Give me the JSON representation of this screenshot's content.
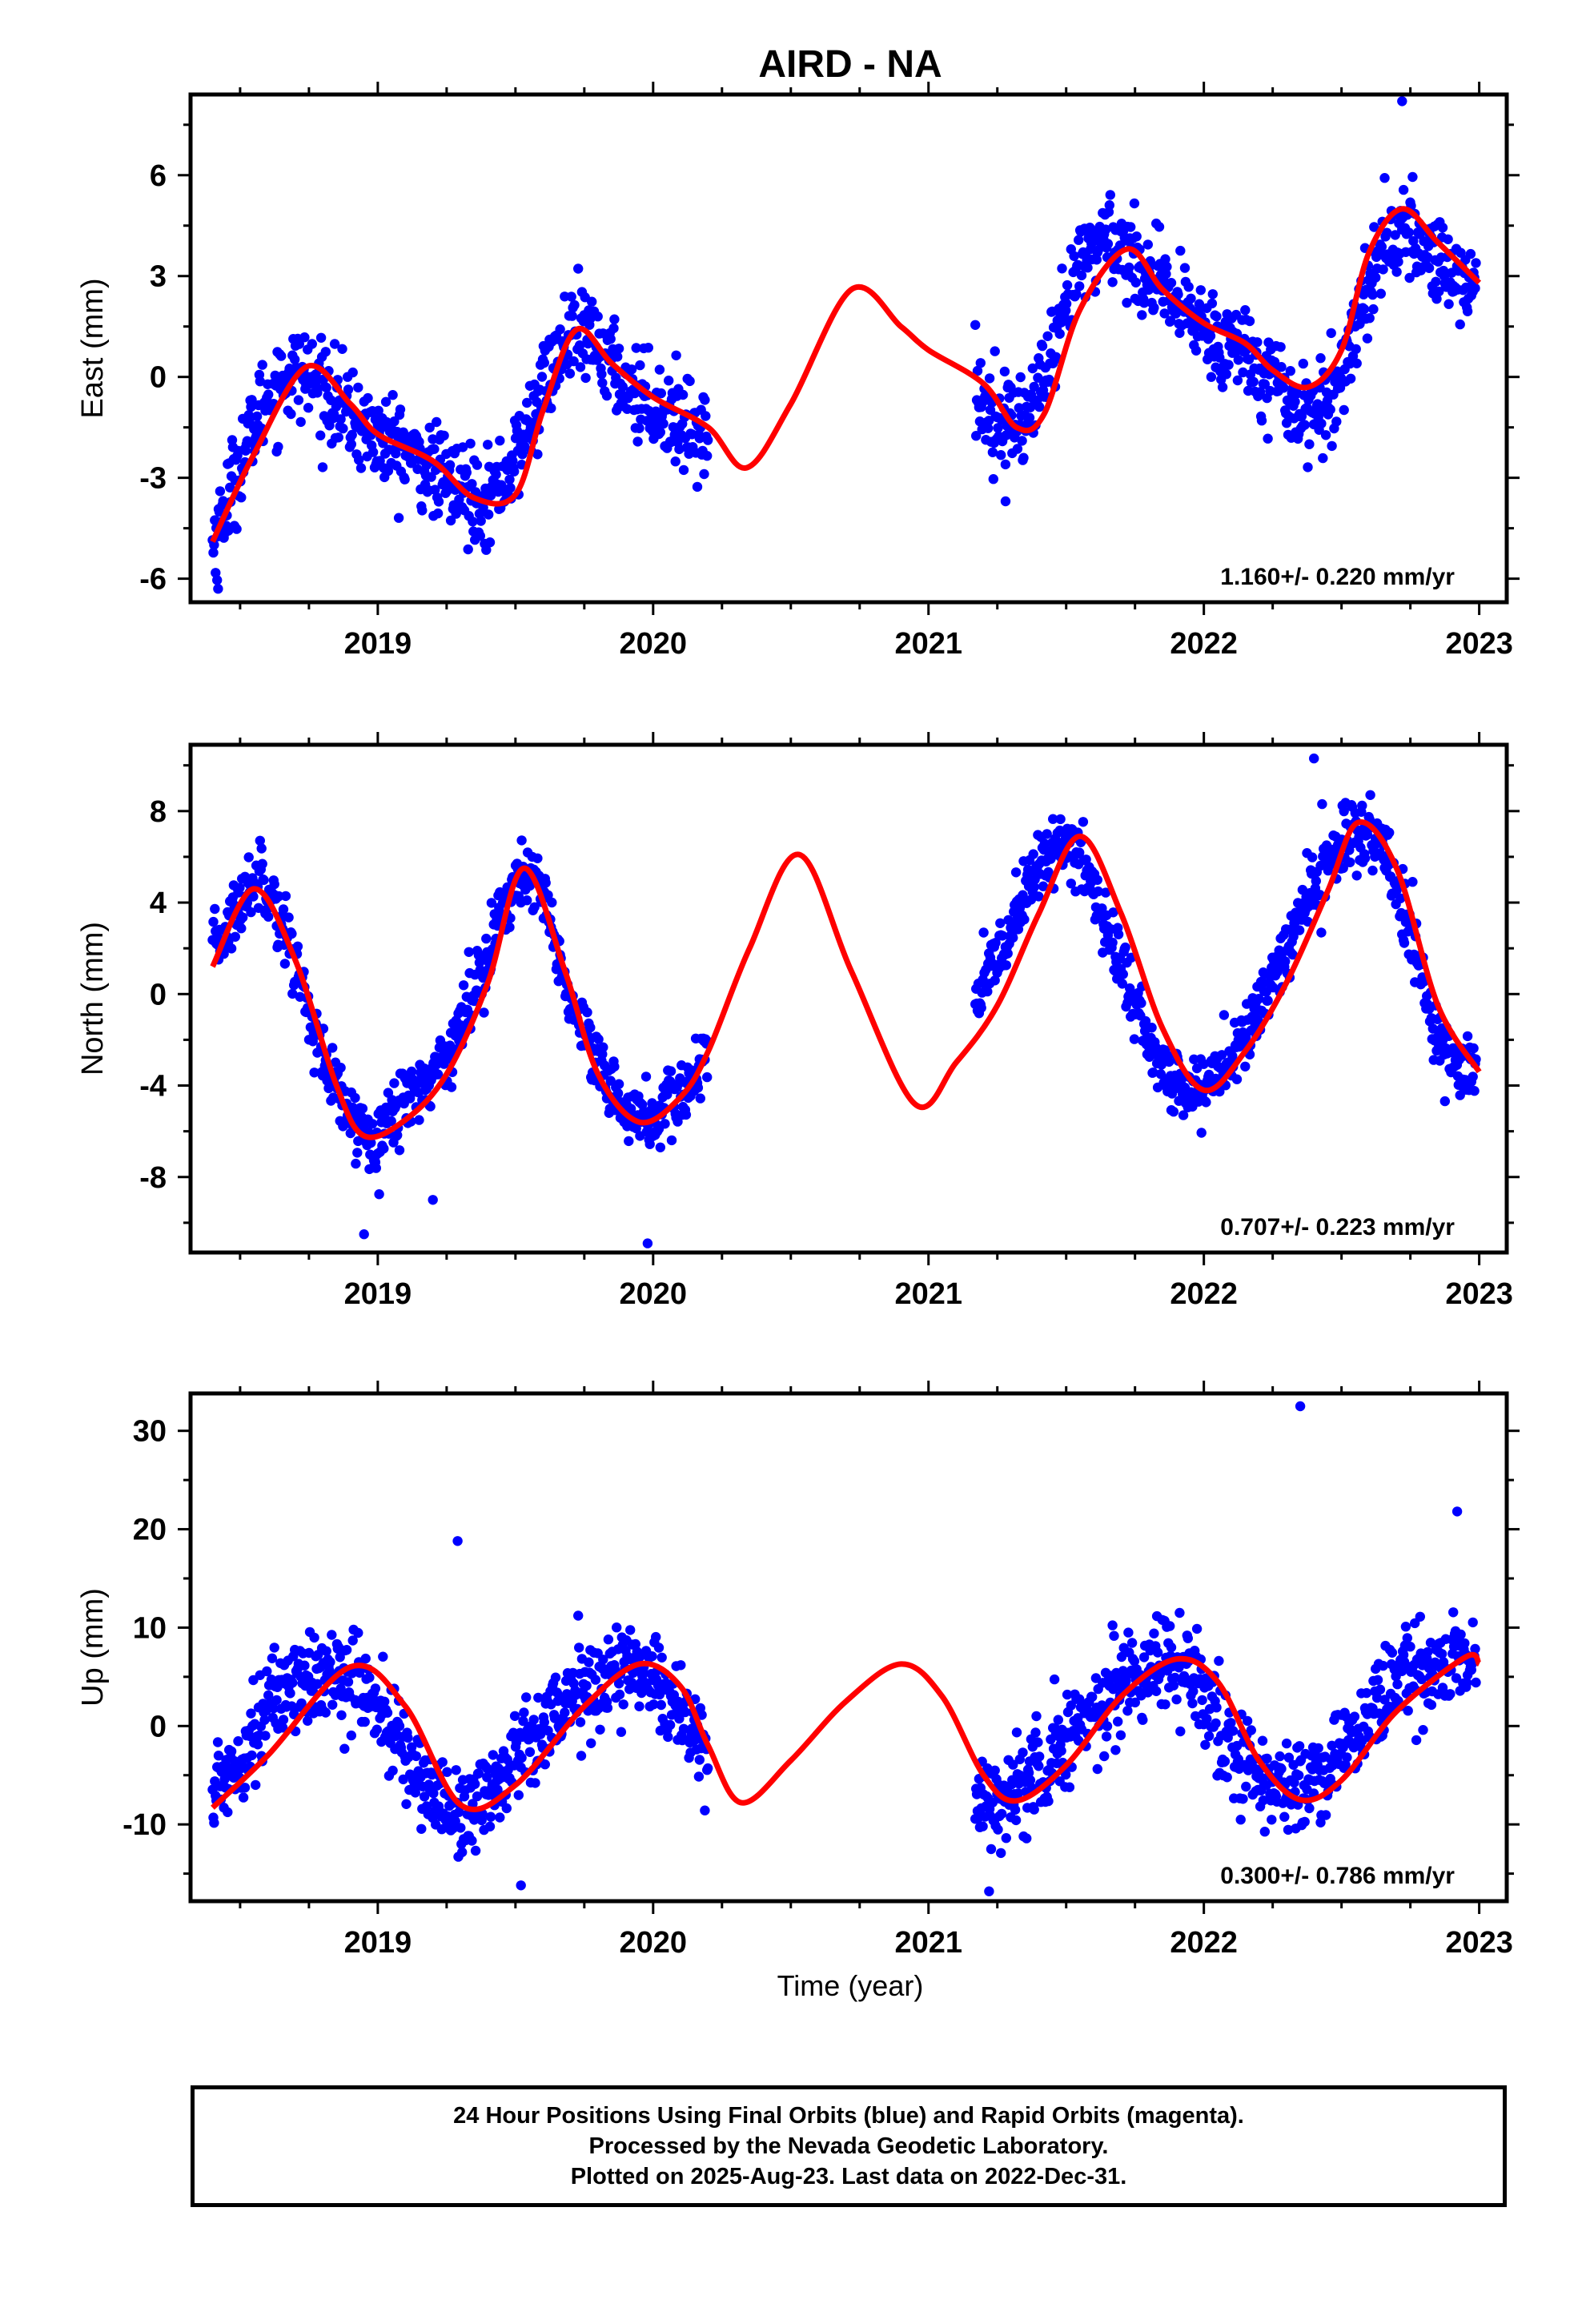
{
  "chart_data": [
    {
      "type": "scatter",
      "title": "AIRD - NA",
      "ylabel": "East (mm)",
      "xlabel": "",
      "xlim": [
        2018.32,
        2023.1
      ],
      "ylim": [
        -6.7,
        8.4
      ],
      "xticks": [
        2019,
        2020,
        2021,
        2022,
        2023
      ],
      "yticks": [
        -6,
        -3,
        0,
        3,
        6
      ],
      "annotation": "1.160+/- 0.220 mm/yr",
      "grid": false,
      "series": [
        {
          "kind": "points",
          "color": "#0000ff",
          "segments": [
            [
              2018.4,
              2020.2
            ],
            [
              2021.17,
              2022.99
            ]
          ],
          "x": [
            2018.4,
            2018.5,
            2018.6,
            2018.7,
            2018.8,
            2018.9,
            2019.0,
            2019.1,
            2019.2,
            2019.3,
            2019.4,
            2019.5,
            2019.6,
            2019.7,
            2019.8,
            2019.9,
            2020.0,
            2020.1,
            2020.2,
            2021.17,
            2021.25,
            2021.35,
            2021.45,
            2021.55,
            2021.65,
            2021.75,
            2021.85,
            2021.95,
            2022.05,
            2022.15,
            2022.25,
            2022.35,
            2022.45,
            2022.55,
            2022.65,
            2022.75,
            2022.85,
            2022.99
          ],
          "y": [
            -5.0,
            -2.5,
            -0.5,
            0.2,
            -0.3,
            -1.2,
            -1.8,
            -2.2,
            -2.8,
            -3.3,
            -3.6,
            -2.5,
            -0.3,
            1.3,
            0.9,
            -0.2,
            -0.8,
            -1.3,
            -1.8,
            -0.5,
            -1.2,
            -1.3,
            0.5,
            3.3,
            4.3,
            3.5,
            2.5,
            1.8,
            1.2,
            0.8,
            0.0,
            -1.0,
            -1.0,
            1.5,
            4.0,
            4.2,
            3.5,
            2.6
          ],
          "spread": 1.1,
          "outliers": [
            [
              2022.72,
              8.2
            ],
            [
              2018.42,
              -6.3
            ],
            [
              2021.28,
              -3.7
            ]
          ]
        },
        {
          "kind": "line",
          "color": "#ff0000",
          "x": [
            2018.4,
            2018.55,
            2018.74,
            2018.9,
            2019.0,
            2019.2,
            2019.35,
            2019.5,
            2019.6,
            2019.72,
            2019.85,
            2020.0,
            2020.2,
            2020.34,
            2020.5,
            2020.72,
            2020.9,
            2021.0,
            2021.2,
            2021.32,
            2021.42,
            2021.55,
            2021.72,
            2021.85,
            2022.0,
            2022.15,
            2022.25,
            2022.38,
            2022.5,
            2022.6,
            2022.72,
            2022.85,
            2023.0
          ],
          "y": [
            -4.9,
            -2.3,
            0.3,
            -0.8,
            -1.7,
            -2.5,
            -3.6,
            -3.5,
            -1.0,
            1.4,
            0.4,
            -0.6,
            -1.5,
            -2.7,
            -0.8,
            2.6,
            1.5,
            0.8,
            -0.2,
            -1.5,
            -1.1,
            2.0,
            3.8,
            2.6,
            1.6,
            1.0,
            0.2,
            -0.3,
            0.8,
            3.7,
            5.0,
            4.0,
            2.8
          ]
        }
      ]
    },
    {
      "type": "scatter",
      "title": "",
      "ylabel": "North (mm)",
      "xlabel": "",
      "xlim": [
        2018.32,
        2023.1
      ],
      "ylim": [
        -11.3,
        10.9
      ],
      "xticks": [
        2019,
        2020,
        2021,
        2022,
        2023
      ],
      "yticks": [
        -8,
        -4,
        0,
        4,
        8
      ],
      "annotation": "0.707+/- 0.223 mm/yr",
      "grid": false,
      "series": [
        {
          "kind": "points",
          "color": "#0000ff",
          "segments": [
            [
              2018.4,
              2020.2
            ],
            [
              2021.17,
              2022.99
            ]
          ],
          "x": [
            2018.4,
            2018.5,
            2018.58,
            2018.7,
            2018.8,
            2018.9,
            2019.0,
            2019.1,
            2019.2,
            2019.3,
            2019.4,
            2019.5,
            2019.6,
            2019.7,
            2019.8,
            2019.9,
            2020.0,
            2020.1,
            2020.2,
            2021.17,
            2021.25,
            2021.35,
            2021.45,
            2021.55,
            2021.65,
            2021.75,
            2021.85,
            2021.95,
            2022.05,
            2022.15,
            2022.25,
            2022.35,
            2022.45,
            2022.55,
            2022.65,
            2022.75,
            2022.85,
            2022.99
          ],
          "y": [
            1.8,
            4.0,
            5.5,
            1.5,
            -3.0,
            -5.5,
            -6.2,
            -4.5,
            -3.5,
            -1.5,
            2.0,
            5.0,
            4.5,
            -0.5,
            -3.5,
            -5.0,
            -5.5,
            -4.5,
            -2.5,
            -0.5,
            1.5,
            4.5,
            6.5,
            6.0,
            3.0,
            -0.5,
            -3.5,
            -4.3,
            -3.5,
            -2.0,
            0.5,
            3.5,
            6.0,
            7.0,
            6.5,
            2.5,
            -2.0,
            -3.5
          ],
          "spread": 1.2,
          "outliers": [
            [
              2018.95,
              -10.5
            ],
            [
              2019.98,
              -10.9
            ],
            [
              2022.4,
              10.3
            ],
            [
              2019.2,
              -9.0
            ]
          ]
        },
        {
          "kind": "line",
          "color": "#ff0000",
          "x": [
            2018.4,
            2018.55,
            2018.7,
            2018.85,
            2018.95,
            2019.1,
            2019.25,
            2019.4,
            2019.53,
            2019.68,
            2019.8,
            2019.95,
            2020.1,
            2020.2,
            2020.35,
            2020.53,
            2020.72,
            2020.95,
            2021.1,
            2021.25,
            2021.4,
            2021.55,
            2021.7,
            2021.85,
            2022.0,
            2022.15,
            2022.3,
            2022.45,
            2022.56,
            2022.7,
            2022.85,
            2023.0
          ],
          "y": [
            1.2,
            4.6,
            1.5,
            -4.0,
            -6.2,
            -5.5,
            -3.5,
            0.5,
            5.5,
            1.0,
            -3.5,
            -5.6,
            -4.5,
            -2.5,
            2.0,
            6.1,
            1.0,
            -4.8,
            -3.0,
            -0.5,
            3.5,
            6.9,
            3.5,
            -1.5,
            -4.2,
            -2.5,
            0.5,
            4.5,
            7.5,
            5.5,
            -0.5,
            -3.4
          ]
        }
      ]
    },
    {
      "type": "scatter",
      "title": "",
      "ylabel": "Up (mm)",
      "xlabel": "Time (year)",
      "xlim": [
        2018.32,
        2023.1
      ],
      "ylim": [
        -17.8,
        33.8
      ],
      "xticks": [
        2019,
        2020,
        2021,
        2022,
        2023
      ],
      "yticks": [
        -10,
        0,
        10,
        20,
        30
      ],
      "annotation": "0.300+/- 0.786 mm/yr",
      "grid": false,
      "series": [
        {
          "kind": "points",
          "color": "#0000ff",
          "segments": [
            [
              2018.4,
              2020.2
            ],
            [
              2021.17,
              2022.99
            ]
          ],
          "x": [
            2018.4,
            2018.5,
            2018.6,
            2018.7,
            2018.8,
            2018.9,
            2019.0,
            2019.1,
            2019.2,
            2019.3,
            2019.4,
            2019.5,
            2019.6,
            2019.7,
            2019.8,
            2019.9,
            2020.0,
            2020.1,
            2020.2,
            2021.17,
            2021.25,
            2021.35,
            2021.45,
            2021.55,
            2021.65,
            2021.75,
            2021.85,
            2021.95,
            2022.05,
            2022.15,
            2022.25,
            2022.35,
            2022.45,
            2022.55,
            2022.65,
            2022.75,
            2022.85,
            2022.99
          ],
          "y": [
            -7.0,
            -3.0,
            2.0,
            5.0,
            4.5,
            5.5,
            2.0,
            -3.0,
            -7.0,
            -9.0,
            -7.0,
            -3.0,
            0.5,
            2.5,
            4.5,
            6.0,
            5.5,
            1.5,
            -4.0,
            -7.0,
            -8.0,
            -6.0,
            -3.0,
            0.5,
            3.0,
            5.0,
            7.0,
            6.0,
            -1.0,
            -4.0,
            -6.0,
            -6.5,
            -4.0,
            -1.0,
            3.0,
            5.0,
            6.0,
            7.0
          ],
          "spread": 3.8,
          "outliers": [
            [
              2022.35,
              32.5
            ],
            [
              2019.29,
              18.8
            ],
            [
              2019.52,
              -16.2
            ],
            [
              2021.22,
              -16.8
            ],
            [
              2022.92,
              21.8
            ]
          ]
        },
        {
          "kind": "line",
          "color": "#ff0000",
          "x": [
            2018.4,
            2018.6,
            2018.9,
            2019.1,
            2019.3,
            2019.5,
            2019.75,
            2019.95,
            2020.1,
            2020.2,
            2020.32,
            2020.5,
            2020.7,
            2020.9,
            2021.05,
            2021.2,
            2021.32,
            2021.5,
            2021.7,
            2021.9,
            2022.05,
            2022.2,
            2022.35,
            2022.5,
            2022.7,
            2022.95,
            2023.0
          ],
          "y": [
            -8.3,
            -3.0,
            6.0,
            2.0,
            -8.0,
            -6.0,
            2.0,
            6.3,
            4.0,
            -2.0,
            -7.8,
            -3.5,
            2.5,
            6.3,
            3.0,
            -5.0,
            -7.6,
            -4.0,
            3.0,
            6.8,
            4.5,
            -3.5,
            -7.5,
            -5.5,
            1.5,
            7.0,
            6.3
          ]
        }
      ]
    }
  ],
  "footer": {
    "line1": "24 Hour Positions Using Final Orbits (blue) and Rapid Orbits (magenta).",
    "line2": "Processed by the Nevada Geodetic Laboratory.",
    "line3": "Plotted on 2025-Aug-23. Last data on 2022-Dec-31."
  }
}
